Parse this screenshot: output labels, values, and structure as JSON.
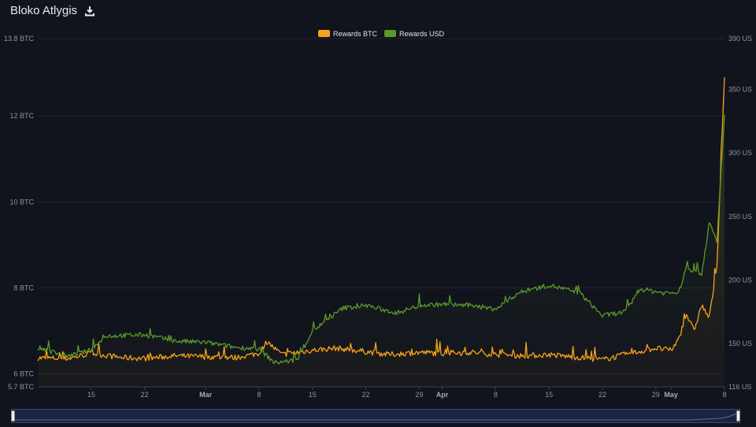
{
  "header": {
    "title": "Bloko Atlygis",
    "download_icon": "download-icon"
  },
  "chart_data": {
    "type": "line",
    "title": "Bloko Atlygis",
    "legend_position": "top-center",
    "grid": true,
    "x_axis": {
      "start": "2024-02-08",
      "end": "2024-05-08",
      "tick_labels": [
        "15",
        "22",
        "Mar",
        "8",
        "15",
        "22",
        "29",
        "Apr",
        "8",
        "15",
        "22",
        "29",
        "May",
        "8"
      ],
      "tick_dates": [
        "2024-02-15",
        "2024-02-22",
        "2024-03-01",
        "2024-03-08",
        "2024-03-15",
        "2024-03-22",
        "2024-03-29",
        "2024-04-01",
        "2024-04-08",
        "2024-04-15",
        "2024-04-22",
        "2024-04-29",
        "2024-05-01",
        "2024-05-08"
      ],
      "bold_labels": [
        "Mar",
        "Apr",
        "May"
      ]
    },
    "y_left": {
      "unit": "BTC",
      "range": [
        5.7,
        13.8
      ],
      "tick_values": [
        5.7,
        6,
        8,
        10,
        12,
        13.8
      ],
      "tick_labels": [
        "5.7 BTC",
        "6 BTC",
        "8 BTC",
        "10 BTC",
        "12 BTC",
        "13.8 BTC"
      ]
    },
    "y_right": {
      "unit": "USD",
      "range": [
        116,
        390
      ],
      "tick_values": [
        116,
        150,
        200,
        250,
        300,
        350,
        390
      ],
      "tick_labels": [
        "116 US",
        "150 US",
        "200 US",
        "250 US",
        "300 US",
        "350 US",
        "390 US"
      ]
    },
    "series": [
      {
        "name": "Rewards BTC",
        "axis": "left",
        "color": "#f7a21b",
        "points": [
          [
            "2024-02-08",
            6.37
          ],
          [
            "2024-02-12",
            6.36
          ],
          [
            "2024-02-15",
            6.48
          ],
          [
            "2024-02-19",
            6.38
          ],
          [
            "2024-02-22",
            6.36
          ],
          [
            "2024-02-26",
            6.42
          ],
          [
            "2024-03-01",
            6.4
          ],
          [
            "2024-03-05",
            6.38
          ],
          [
            "2024-03-08",
            6.48
          ],
          [
            "2024-03-09",
            6.75
          ],
          [
            "2024-03-11",
            6.45
          ],
          [
            "2024-03-15",
            6.55
          ],
          [
            "2024-03-18",
            6.6
          ],
          [
            "2024-03-22",
            6.52
          ],
          [
            "2024-03-25",
            6.45
          ],
          [
            "2024-03-29",
            6.5
          ],
          [
            "2024-04-01",
            6.48
          ],
          [
            "2024-04-05",
            6.5
          ],
          [
            "2024-04-08",
            6.45
          ],
          [
            "2024-04-12",
            6.42
          ],
          [
            "2024-04-15",
            6.45
          ],
          [
            "2024-04-19",
            6.38
          ],
          [
            "2024-04-22",
            6.33
          ],
          [
            "2024-04-25",
            6.45
          ],
          [
            "2024-04-29",
            6.6
          ],
          [
            "2024-05-01",
            6.55
          ],
          [
            "2024-05-02",
            6.8
          ],
          [
            "2024-05-03",
            7.4
          ],
          [
            "2024-05-04",
            7.0
          ],
          [
            "2024-05-05",
            7.6
          ],
          [
            "2024-05-06",
            7.3
          ],
          [
            "2024-05-07",
            8.5
          ],
          [
            "2024-05-08",
            12.9
          ]
        ]
      },
      {
        "name": "Rewards USD",
        "axis": "right",
        "color": "#5a9a2a",
        "points": [
          [
            "2024-02-08",
            147
          ],
          [
            "2024-02-12",
            140
          ],
          [
            "2024-02-15",
            145
          ],
          [
            "2024-02-17",
            156
          ],
          [
            "2024-02-22",
            157
          ],
          [
            "2024-02-26",
            152
          ],
          [
            "2024-03-01",
            151
          ],
          [
            "2024-03-05",
            147
          ],
          [
            "2024-03-08",
            146
          ],
          [
            "2024-03-10",
            135
          ],
          [
            "2024-03-13",
            137
          ],
          [
            "2024-03-15",
            160
          ],
          [
            "2024-03-19",
            178
          ],
          [
            "2024-03-22",
            180
          ],
          [
            "2024-03-26",
            174
          ],
          [
            "2024-03-29",
            180
          ],
          [
            "2024-04-01",
            181
          ],
          [
            "2024-04-05",
            180
          ],
          [
            "2024-04-08",
            177
          ],
          [
            "2024-04-11",
            190
          ],
          [
            "2024-04-15",
            196
          ],
          [
            "2024-04-19",
            190
          ],
          [
            "2024-04-22",
            172
          ],
          [
            "2024-04-25",
            175
          ],
          [
            "2024-04-27",
            193
          ],
          [
            "2024-04-30",
            190
          ],
          [
            "2024-05-02",
            190
          ],
          [
            "2024-05-03",
            210
          ],
          [
            "2024-05-05",
            205
          ],
          [
            "2024-05-06",
            245
          ],
          [
            "2024-05-07",
            230
          ],
          [
            "2024-05-08",
            330
          ]
        ]
      }
    ]
  },
  "navigator": {
    "left_handle": "navigator-left-handle",
    "right_handle": "navigator-right-handle"
  }
}
